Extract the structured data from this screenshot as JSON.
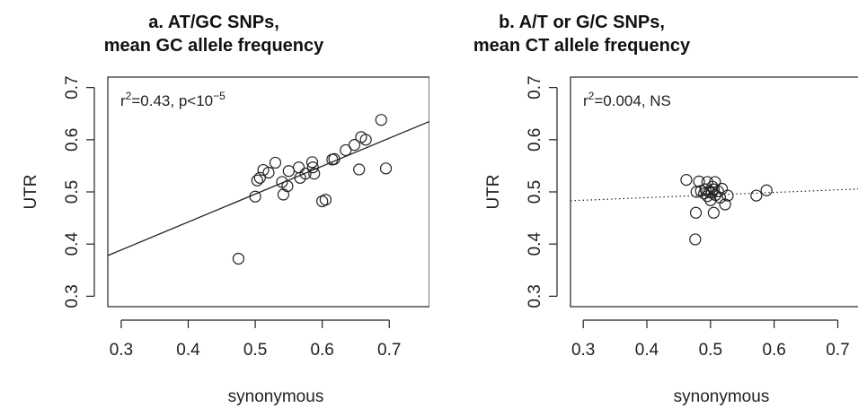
{
  "chart_data": [
    {
      "type": "scatter",
      "title": "a. AT/GC SNPs,",
      "subtitle": "mean GC allele frequency",
      "xlabel": "synonymous",
      "ylabel": "UTR",
      "xlim": [
        0.28,
        0.76
      ],
      "ylim": [
        0.28,
        0.72
      ],
      "xticks": [
        "0.3",
        "0.4",
        "0.5",
        "0.6",
        "0.7"
      ],
      "yticks": [
        "0.3",
        "0.4",
        "0.5",
        "0.6",
        "0.7"
      ],
      "annotation": {
        "prefix": "r",
        "sup": "2",
        "mid": "=0.43, p<10",
        "sup2": "−5",
        "suffix": ""
      },
      "fit_line": {
        "style": "solid",
        "x": [
          0.28,
          0.76
        ],
        "y": [
          0.378,
          0.635
        ]
      },
      "points": [
        {
          "x": 0.475,
          "y": 0.372
        },
        {
          "x": 0.5,
          "y": 0.491
        },
        {
          "x": 0.503,
          "y": 0.522
        },
        {
          "x": 0.507,
          "y": 0.527
        },
        {
          "x": 0.512,
          "y": 0.542
        },
        {
          "x": 0.52,
          "y": 0.537
        },
        {
          "x": 0.53,
          "y": 0.556
        },
        {
          "x": 0.54,
          "y": 0.519
        },
        {
          "x": 0.542,
          "y": 0.495
        },
        {
          "x": 0.548,
          "y": 0.511
        },
        {
          "x": 0.55,
          "y": 0.54
        },
        {
          "x": 0.565,
          "y": 0.547
        },
        {
          "x": 0.567,
          "y": 0.527
        },
        {
          "x": 0.575,
          "y": 0.535
        },
        {
          "x": 0.585,
          "y": 0.557
        },
        {
          "x": 0.586,
          "y": 0.547
        },
        {
          "x": 0.588,
          "y": 0.535
        },
        {
          "x": 0.6,
          "y": 0.482
        },
        {
          "x": 0.605,
          "y": 0.485
        },
        {
          "x": 0.615,
          "y": 0.562
        },
        {
          "x": 0.618,
          "y": 0.563
        },
        {
          "x": 0.635,
          "y": 0.58
        },
        {
          "x": 0.648,
          "y": 0.59
        },
        {
          "x": 0.655,
          "y": 0.543
        },
        {
          "x": 0.658,
          "y": 0.605
        },
        {
          "x": 0.665,
          "y": 0.6
        },
        {
          "x": 0.688,
          "y": 0.638
        },
        {
          "x": 0.695,
          "y": 0.545
        }
      ]
    },
    {
      "type": "scatter",
      "title": "b. A/T or G/C SNPs,",
      "subtitle": "mean CT allele frequency",
      "xlabel": "synonymous",
      "ylabel": "UTR",
      "xlim": [
        0.28,
        0.76
      ],
      "ylim": [
        0.28,
        0.72
      ],
      "xticks": [
        "0.3",
        "0.4",
        "0.5",
        "0.6",
        "0.7"
      ],
      "yticks": [
        "0.3",
        "0.4",
        "0.5",
        "0.6",
        "0.7"
      ],
      "annotation": {
        "prefix": "r",
        "sup": "2",
        "mid": "=0.004, NS",
        "sup2": "",
        "suffix": ""
      },
      "fit_line": {
        "style": "dotted",
        "x": [
          0.28,
          0.76
        ],
        "y": [
          0.483,
          0.507
        ]
      },
      "points": [
        {
          "x": 0.462,
          "y": 0.523
        },
        {
          "x": 0.476,
          "y": 0.409
        },
        {
          "x": 0.477,
          "y": 0.46
        },
        {
          "x": 0.478,
          "y": 0.5
        },
        {
          "x": 0.482,
          "y": 0.52
        },
        {
          "x": 0.485,
          "y": 0.502
        },
        {
          "x": 0.49,
          "y": 0.497
        },
        {
          "x": 0.492,
          "y": 0.505
        },
        {
          "x": 0.495,
          "y": 0.519
        },
        {
          "x": 0.495,
          "y": 0.492
        },
        {
          "x": 0.498,
          "y": 0.5
        },
        {
          "x": 0.5,
          "y": 0.484
        },
        {
          "x": 0.502,
          "y": 0.498
        },
        {
          "x": 0.503,
          "y": 0.51
        },
        {
          "x": 0.505,
          "y": 0.505
        },
        {
          "x": 0.505,
          "y": 0.46
        },
        {
          "x": 0.507,
          "y": 0.519
        },
        {
          "x": 0.508,
          "y": 0.494
        },
        {
          "x": 0.512,
          "y": 0.501
        },
        {
          "x": 0.515,
          "y": 0.489
        },
        {
          "x": 0.518,
          "y": 0.506
        },
        {
          "x": 0.523,
          "y": 0.476
        },
        {
          "x": 0.527,
          "y": 0.493
        },
        {
          "x": 0.572,
          "y": 0.493
        },
        {
          "x": 0.588,
          "y": 0.503
        }
      ]
    }
  ]
}
